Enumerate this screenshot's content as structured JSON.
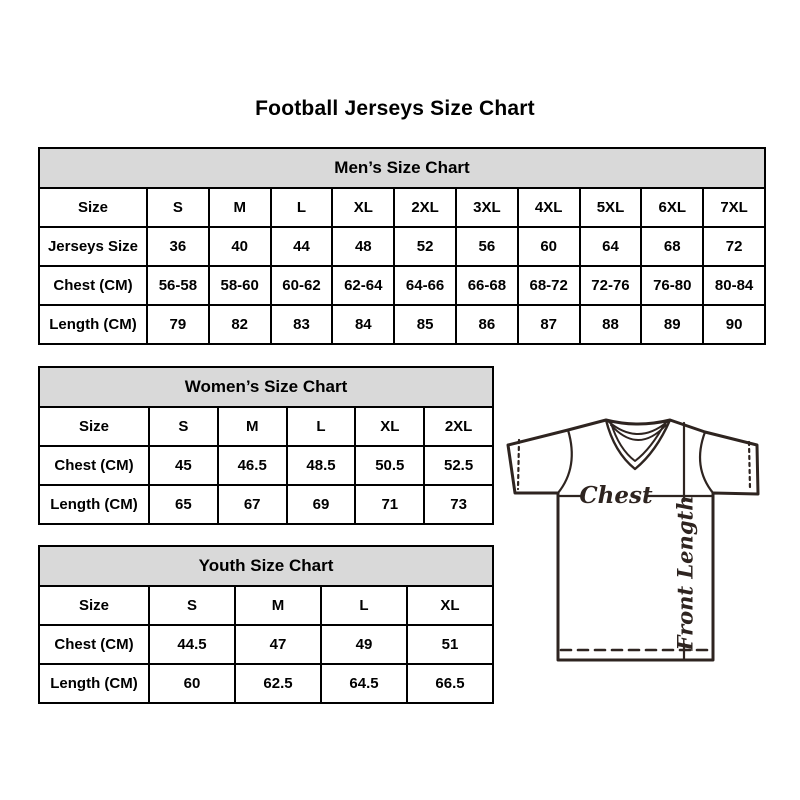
{
  "page": {
    "title": "Football Jerseys Size Chart"
  },
  "chart_data": [
    {
      "type": "table",
      "title": "Men’s Size Chart",
      "rows": [
        [
          "Size",
          "S",
          "M",
          "L",
          "XL",
          "2XL",
          "3XL",
          "4XL",
          "5XL",
          "6XL",
          "7XL"
        ],
        [
          "Jerseys Size",
          "36",
          "40",
          "44",
          "48",
          "52",
          "56",
          "60",
          "64",
          "68",
          "72"
        ],
        [
          "Chest (CM)",
          "56-58",
          "58-60",
          "60-62",
          "62-64",
          "64-66",
          "66-68",
          "68-72",
          "72-76",
          "76-80",
          "80-84"
        ],
        [
          "Length (CM)",
          "79",
          "82",
          "83",
          "84",
          "85",
          "86",
          "87",
          "88",
          "89",
          "90"
        ]
      ]
    },
    {
      "type": "table",
      "title": "Women’s Size Chart",
      "rows": [
        [
          "Size",
          "S",
          "M",
          "L",
          "XL",
          "2XL"
        ],
        [
          "Chest (CM)",
          "45",
          "46.5",
          "48.5",
          "50.5",
          "52.5"
        ],
        [
          "Length (CM)",
          "65",
          "67",
          "69",
          "71",
          "73"
        ]
      ]
    },
    {
      "type": "table",
      "title": "Youth Size Chart",
      "rows": [
        [
          "Size",
          "S",
          "M",
          "L",
          "XL"
        ],
        [
          "Chest (CM)",
          "44.5",
          "47",
          "49",
          "51"
        ],
        [
          "Length (CM)",
          "60",
          "62.5",
          "64.5",
          "66.5"
        ]
      ]
    }
  ],
  "diagram": {
    "chest_label": "Chest",
    "front_length_label": "Front Length"
  },
  "colors": {
    "table_header_bg": "#d9d9d9",
    "table_border": "#000000",
    "text": "#000000",
    "jersey_stroke": "#2e2420"
  }
}
